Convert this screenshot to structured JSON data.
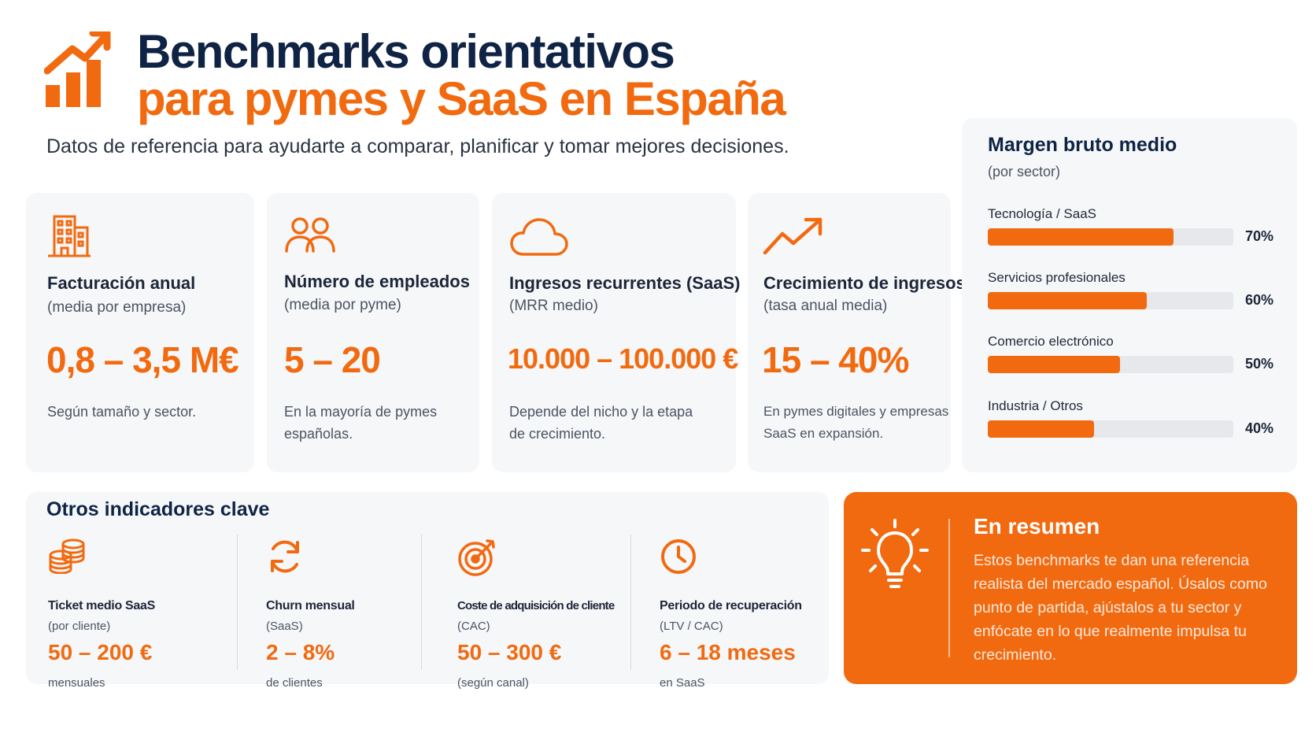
{
  "header": {
    "title_line1": "Benchmarks orientativos",
    "title_line2": "para pymes y SaaS en España",
    "subtitle": "Datos de referencia para ayudarte a comparar, planificar y tomar mejores decisiones.",
    "icon": "growth-chart-icon"
  },
  "colors": {
    "accent": "#f26a10",
    "navy": "#0f2445",
    "card_bg": "#f6f7f9",
    "track": "#e6e8ec"
  },
  "cards": [
    {
      "icon": "building-icon",
      "title": "Facturación anual",
      "subtitle": "(media por empresa)",
      "value": "0,8 – 3,5 M€",
      "note": "Según tamaño y sector."
    },
    {
      "icon": "people-icon",
      "title": "Número de empleados",
      "subtitle": "(media por pyme)",
      "value": "5 – 20",
      "note": "En la mayoría de pymes españolas."
    },
    {
      "icon": "cloud-icon",
      "title": "Ingresos recurrentes (SaaS)",
      "subtitle": "(MRR medio)",
      "value": "10.000 – 100.000 €",
      "note": "Depende del nicho y la etapa de crecimiento."
    },
    {
      "icon": "trend-up-icon",
      "title": "Crecimiento de ingresos",
      "subtitle": "(tasa anual media)",
      "value": "15 – 40%",
      "note": "En pymes digitales y empresas SaaS en expansión."
    }
  ],
  "margen_bruto": {
    "title": "Margen bruto medio",
    "subtitle": "(por sector)",
    "bars": [
      {
        "label": "Tecnología / SaaS",
        "value": 70,
        "display": "70%"
      },
      {
        "label": "Servicios profesionales",
        "value": 60,
        "display": "60%"
      },
      {
        "label": "Comercio electrónico",
        "value": 50,
        "display": "50%"
      },
      {
        "label": "Industria / Otros",
        "value": 40,
        "display": "40%"
      }
    ]
  },
  "otros": {
    "title": "Otros indicadores clave",
    "items": [
      {
        "icon": "coins-icon",
        "title": "Ticket medio SaaS",
        "subtitle": "(por cliente)",
        "value": "50 – 200 €",
        "note": "mensuales"
      },
      {
        "icon": "refresh-icon",
        "title": "Churn mensual",
        "subtitle": "(SaaS)",
        "value": "2 – 8%",
        "note": "de clientes"
      },
      {
        "icon": "target-icon",
        "title": "Coste de adquisición de cliente",
        "subtitle": "(CAC)",
        "value": "50 – 300 €",
        "note": "(según canal)"
      },
      {
        "icon": "clock-icon",
        "title": "Periodo de recuperación",
        "subtitle": "(LTV / CAC)",
        "value": "6 – 18 meses",
        "note": "en SaaS"
      }
    ]
  },
  "resumen": {
    "icon": "lightbulb-icon",
    "title": "En resumen",
    "text": "Estos benchmarks te dan una referencia realista del mercado español. Úsalos como punto de partida, ajústalos a tu sector y enfócate en lo que realmente impulsa tu crecimiento."
  }
}
